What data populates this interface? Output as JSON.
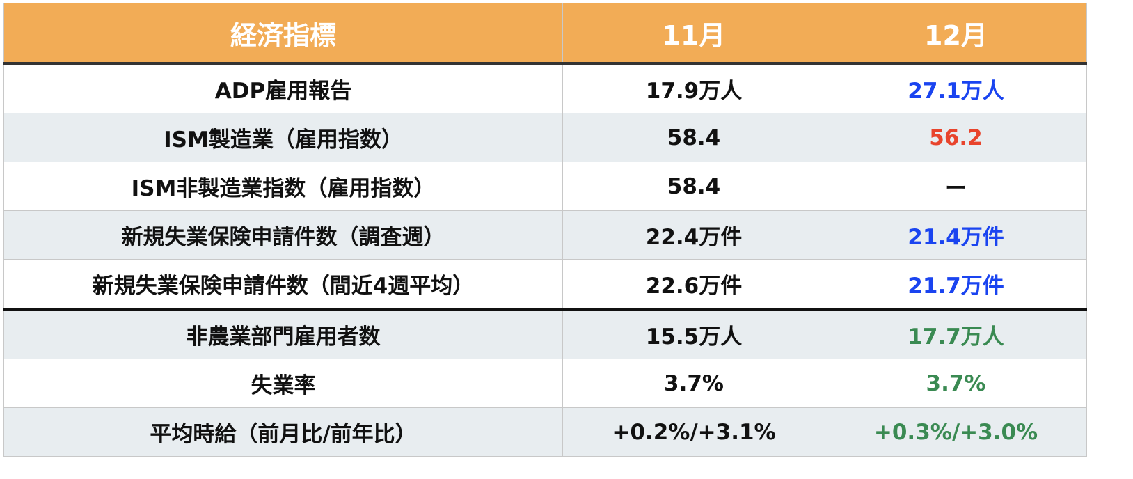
{
  "header": {
    "indicator": "経済指標",
    "nov": "11月",
    "dec": "12月"
  },
  "colors": {
    "header_bg": "#F2AC56",
    "better": "#1A44F0",
    "worse": "#E8442C",
    "result": "#3A8A52"
  },
  "rows": [
    {
      "indicator": "ADP雇用報告",
      "nov": "17.9万人",
      "dec": "27.1万人",
      "dec_color": "#1A44F0"
    },
    {
      "indicator": "ISM製造業（雇用指数）",
      "nov": "58.4",
      "dec": "56.2",
      "dec_color": "#E8442C"
    },
    {
      "indicator": "ISM非製造業指数（雇用指数）",
      "nov": "58.4",
      "dec": "ー",
      "dec_color": "#111111"
    },
    {
      "indicator": "新規失業保険申請件数（調査週）",
      "nov": "22.4万件",
      "dec": "21.4万件",
      "dec_color": "#1A44F0"
    },
    {
      "indicator": "新規失業保険申請件数（間近4週平均）",
      "nov": "22.6万件",
      "dec": "21.7万件",
      "dec_color": "#1A44F0"
    },
    {
      "indicator": "非農業部門雇用者数",
      "nov": "15.5万人",
      "dec": "17.7万人",
      "dec_color": "#3A8A52"
    },
    {
      "indicator": "失業率",
      "nov": "3.7%",
      "dec": "3.7%",
      "dec_color": "#3A8A52"
    },
    {
      "indicator": "平均時給（前月比/前年比）",
      "nov": "+0.2%/+3.1%",
      "dec": "+0.3%/+3.0%",
      "dec_color": "#3A8A52"
    }
  ]
}
